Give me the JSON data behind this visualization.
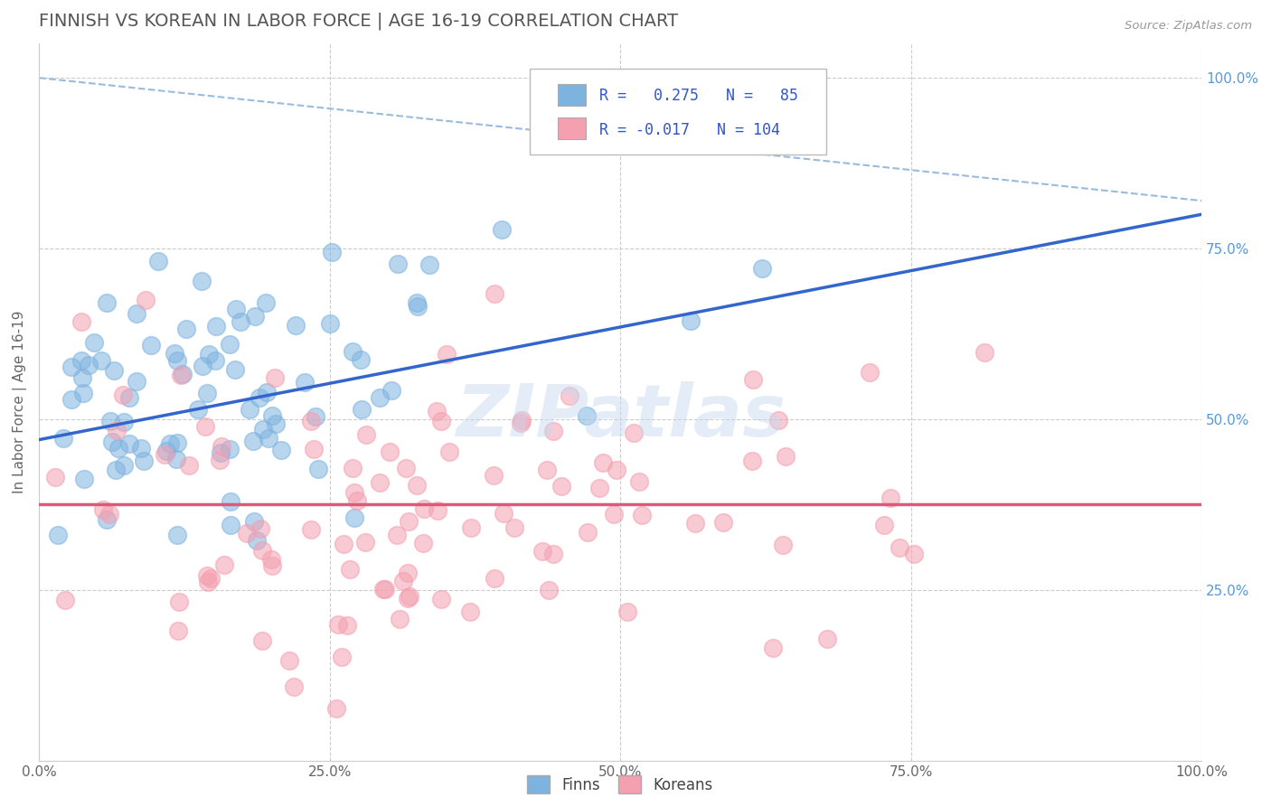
{
  "title": "FINNISH VS KOREAN IN LABOR FORCE | AGE 16-19 CORRELATION CHART",
  "source_text": "Source: ZipAtlas.com",
  "ylabel": "In Labor Force | Age 16-19",
  "finn_R": 0.275,
  "finn_N": 85,
  "korean_R": -0.017,
  "korean_N": 104,
  "finn_color": "#7EB3E0",
  "korean_color": "#F4A0B0",
  "finn_line_color": "#3366CC",
  "korean_line_color": "#E05878",
  "ref_line_color": "#99BBDD",
  "legend_label_finn": "Finns",
  "legend_label_korean": "Koreans",
  "watermark": "ZIPatlas",
  "xlim": [
    0.0,
    1.0
  ],
  "ylim": [
    0.0,
    1.05
  ],
  "title_color": "#555555",
  "stat_text_color": "#3355CC",
  "finn_seed": 42,
  "korean_seed": 77,
  "background_color": "#FFFFFF",
  "grid_color": "#CCCCCC",
  "finn_line_y0": 0.47,
  "finn_line_y1": 0.8,
  "korean_line_y0": 0.375,
  "korean_line_y1": 0.375,
  "ref_line_x0": 0.0,
  "ref_line_y0": 1.0,
  "ref_line_x1": 1.0,
  "ref_line_y1": 0.82,
  "right_tick_color": "#5599DD"
}
